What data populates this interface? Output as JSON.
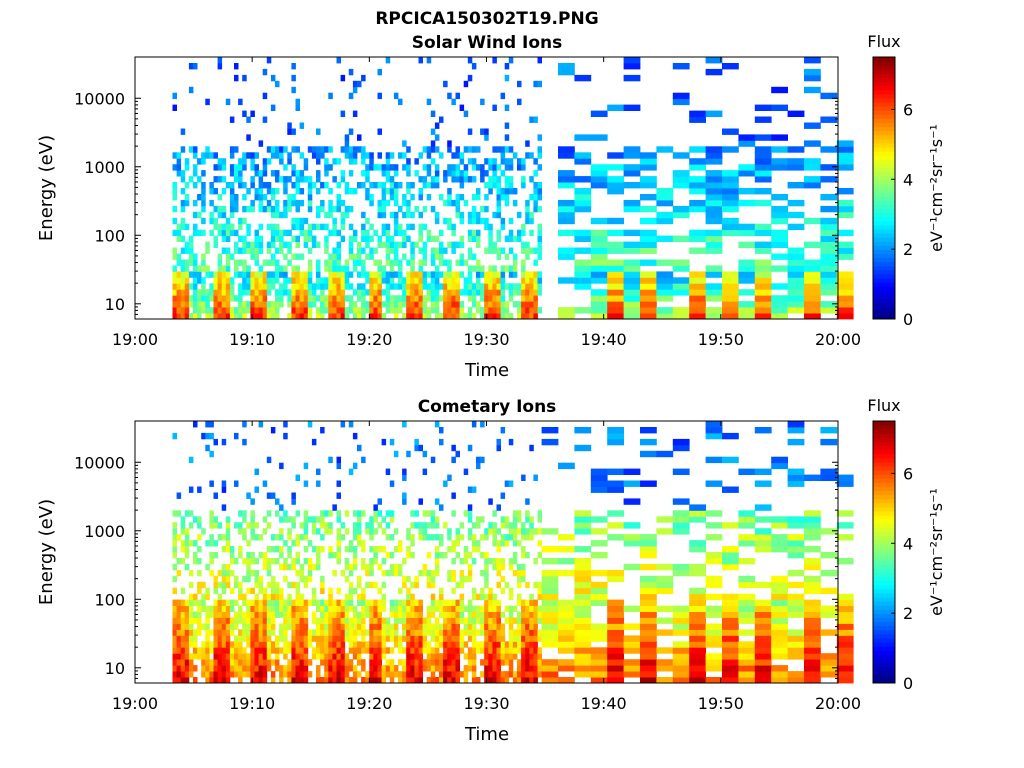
{
  "figure": {
    "suptitle": "RPCICA150302T19.PNG"
  },
  "chart_data": [
    {
      "type": "heatmap",
      "title": "Solar Wind Ions",
      "xlabel": "Time",
      "ylabel": "Energy (eV)",
      "x_ticks": [
        "19:00",
        "19:10",
        "19:20",
        "19:30",
        "19:40",
        "19:50",
        "20:00"
      ],
      "x_range": [
        "19:00",
        "20:00"
      ],
      "y_scale": "log",
      "y_ticks": [
        10,
        100,
        1000,
        10000
      ],
      "y_tick_labels": [
        "10",
        "100",
        "1000",
        "10000"
      ],
      "y_range": [
        6,
        40000
      ],
      "colorbar": {
        "title": "Flux",
        "label": "eV⁻¹cm⁻²sr⁻¹s⁻¹",
        "range": [
          0,
          7.5
        ],
        "ticks": [
          "0",
          "2",
          "4",
          "6"
        ],
        "colormap": "jet"
      },
      "grid": false,
      "pattern": {
        "t_start_min": 3.2,
        "t_end_min": 60,
        "data_gap_min": [
          34.5,
          35.5
        ],
        "low_energy_band_ev": [
          6,
          30
        ],
        "low_energy_peak_flux": 6.3,
        "mid_energy_flux": 3.0,
        "high_energy_flux": 1.4,
        "sparse_high_energy": true
      }
    },
    {
      "type": "heatmap",
      "title": "Cometary Ions",
      "xlabel": "Time",
      "ylabel": "Energy (eV)",
      "x_ticks": [
        "19:00",
        "19:10",
        "19:20",
        "19:30",
        "19:40",
        "19:50",
        "20:00"
      ],
      "x_range": [
        "19:00",
        "20:00"
      ],
      "y_scale": "log",
      "y_ticks": [
        10,
        100,
        1000,
        10000
      ],
      "y_tick_labels": [
        "10",
        "100",
        "1000",
        "10000"
      ],
      "y_range": [
        6,
        40000
      ],
      "colorbar": {
        "title": "Flux",
        "label": "eV⁻¹cm⁻²sr⁻¹s⁻¹",
        "range": [
          0,
          7.5
        ],
        "ticks": [
          "0",
          "2",
          "4",
          "6"
        ],
        "colormap": "jet"
      },
      "grid": false,
      "pattern": {
        "t_start_min": 3.2,
        "t_end_min": 60,
        "data_gap_min": [],
        "low_energy_band_ev": [
          6,
          100
        ],
        "low_energy_peak_flux": 6.8,
        "mid_energy_flux": 4.6,
        "high_energy_flux": 1.5,
        "sparse_high_energy": true
      }
    }
  ]
}
